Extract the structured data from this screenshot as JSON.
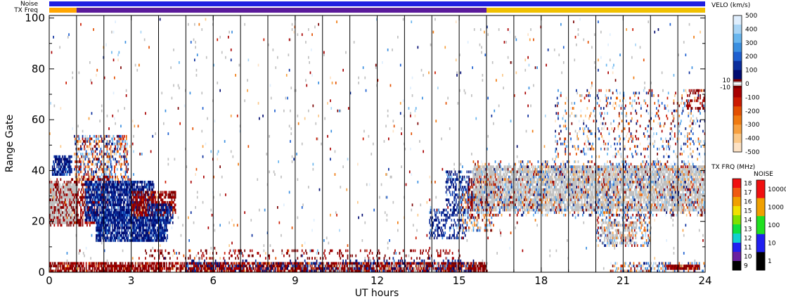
{
  "chart_data": {
    "type": "heatmap",
    "xlabel": "UT hours",
    "ylabel": "Range Gate",
    "xlim": [
      0,
      24
    ],
    "ylim": [
      0,
      101
    ],
    "xticks": [
      0,
      3,
      6,
      9,
      12,
      15,
      18,
      21,
      24
    ],
    "xtick_labels": [
      "0",
      "3",
      "6",
      "9",
      "12",
      "15",
      "18",
      "21",
      "24"
    ],
    "yticks": [
      0,
      20,
      40,
      60,
      80,
      100
    ],
    "ytick_labels": [
      "0",
      "20",
      "40",
      "60",
      "80",
      "100"
    ],
    "hour_gridlines": true,
    "top_bars": {
      "noise_label": "Noise",
      "txfreq_label": "TX Freq",
      "noise_color": "#2020e0",
      "txfreq_segments": [
        {
          "from": 0,
          "to": 1,
          "color": "#ffa500"
        },
        {
          "from": 1,
          "to": 16,
          "color": "#5a1a9a"
        },
        {
          "from": 16,
          "to": 24,
          "color": "#f0c000"
        }
      ]
    },
    "velocity_scale": {
      "title": "VELO (km/s)",
      "ticks": [
        "500",
        "400",
        "300",
        "200",
        "100",
        "0",
        "-100",
        "-200",
        "-300",
        "-400",
        "-500"
      ],
      "side_labels": [
        "10",
        "-10"
      ],
      "colors": [
        "#dfeefd",
        "#a8d4f5",
        "#69b6ee",
        "#3a8fe0",
        "#1d5fd0",
        "#0a2d9c",
        "#000a70",
        "#7a0000",
        "#a80000",
        "#cc1a00",
        "#e34f00",
        "#f07a10",
        "#f7a040",
        "#fbc888",
        "#fde2c4"
      ],
      "ground_scatter_color": "#c0c0c0"
    },
    "txfreq_scale": {
      "title": "TX FRQ (MHz)",
      "ticks": [
        "18",
        "17",
        "16",
        "15",
        "14",
        "13",
        "12",
        "11",
        "10",
        "9"
      ],
      "colors": [
        "#f01010",
        "#f05a10",
        "#f0a000",
        "#f0e000",
        "#80e000",
        "#10e040",
        "#10d0d0",
        "#2020f0",
        "#6a20a0",
        "#000000"
      ]
    },
    "noise_scale": {
      "title": "NOISE",
      "ticks": [
        "10000",
        "1000",
        "100",
        "10",
        "1"
      ],
      "colors": [
        "#f01010",
        "#f0a000",
        "#20e020",
        "#2020f0",
        "#000000"
      ]
    },
    "regions": [
      {
        "kind": "ground",
        "t0": 0.0,
        "t1": 1.0,
        "g0": 19,
        "g1": 35,
        "density": 0.85
      },
      {
        "kind": "neg",
        "t0": 0.0,
        "t1": 1.0,
        "g0": 18,
        "g1": 37,
        "density": 0.25
      },
      {
        "kind": "pos",
        "t0": 0.1,
        "t1": 0.8,
        "g0": 38,
        "g1": 46,
        "density": 0.75
      },
      {
        "kind": "mix",
        "t0": 0.9,
        "t1": 2.9,
        "g0": 36,
        "g1": 54,
        "density": 0.45
      },
      {
        "kind": "neg",
        "t0": 1.0,
        "t1": 2.2,
        "g0": 18,
        "g1": 38,
        "density": 0.45
      },
      {
        "kind": "pos",
        "t0": 1.3,
        "t1": 3.8,
        "g0": 20,
        "g1": 36,
        "density": 0.8
      },
      {
        "kind": "pos",
        "t0": 1.7,
        "t1": 4.3,
        "g0": 12,
        "g1": 24,
        "density": 0.85
      },
      {
        "kind": "neg",
        "t0": 3.0,
        "t1": 4.6,
        "g0": 22,
        "g1": 32,
        "density": 0.65
      },
      {
        "kind": "pos",
        "t0": 3.6,
        "t1": 4.5,
        "g0": 19,
        "g1": 27,
        "density": 0.7
      },
      {
        "kind": "neg",
        "t0": 0.0,
        "t1": 16.0,
        "g0": 0,
        "g1": 4,
        "density": 0.75
      },
      {
        "kind": "pos",
        "t0": 5.0,
        "t1": 15.5,
        "g0": 0,
        "g1": 5,
        "density": 0.18
      },
      {
        "kind": "neg",
        "t0": 3.5,
        "t1": 15.0,
        "g0": 5,
        "g1": 9,
        "density": 0.15
      },
      {
        "kind": "ground",
        "t0": 9.5,
        "t1": 14.5,
        "g0": 0,
        "g1": 3,
        "density": 0.1
      },
      {
        "kind": "pos",
        "t0": 13.9,
        "t1": 15.2,
        "g0": 13,
        "g1": 25,
        "density": 0.35
      },
      {
        "kind": "pos",
        "t0": 14.5,
        "t1": 15.7,
        "g0": 24,
        "g1": 40,
        "density": 0.4
      },
      {
        "kind": "mix",
        "t0": 15.0,
        "t1": 16.2,
        "g0": 16,
        "g1": 32,
        "density": 0.35
      },
      {
        "kind": "neg",
        "t0": 15.3,
        "t1": 16.5,
        "g0": 24,
        "g1": 38,
        "density": 0.3
      },
      {
        "kind": "ground",
        "t0": 15.5,
        "t1": 24.0,
        "g0": 24,
        "g1": 42,
        "density": 0.72
      },
      {
        "kind": "mix",
        "t0": 15.5,
        "t1": 24.0,
        "g0": 22,
        "g1": 44,
        "density": 0.2
      },
      {
        "kind": "mix",
        "t0": 18.5,
        "t1": 24.0,
        "g0": 45,
        "g1": 72,
        "density": 0.12
      },
      {
        "kind": "mix",
        "t0": 20.0,
        "t1": 22.0,
        "g0": 10,
        "g1": 24,
        "density": 0.35
      },
      {
        "kind": "ground",
        "t0": 20.2,
        "t1": 21.5,
        "g0": 11,
        "g1": 20,
        "density": 0.3
      },
      {
        "kind": "mix",
        "t0": 20.5,
        "t1": 24.0,
        "g0": 0,
        "g1": 4,
        "density": 0.35
      },
      {
        "kind": "neg",
        "t0": 22.6,
        "t1": 23.8,
        "g0": 1,
        "g1": 3,
        "density": 0.9
      },
      {
        "kind": "neg",
        "t0": 23.3,
        "t1": 24.0,
        "g0": 64,
        "g1": 72,
        "density": 0.35
      },
      {
        "kind": "ground",
        "t0": 0.0,
        "t1": 24.0,
        "g0": 0,
        "g1": 100,
        "density": 0.006
      },
      {
        "kind": "mix",
        "t0": 0.0,
        "t1": 24.0,
        "g0": 5,
        "g1": 100,
        "density": 0.008
      }
    ]
  }
}
